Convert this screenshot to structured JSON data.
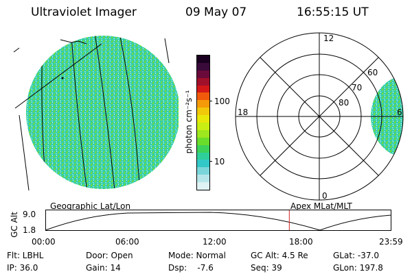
{
  "header": {
    "instrument": "Ultraviolet Imager",
    "date": "09 May 07",
    "time": "16:55:15 UT"
  },
  "colorbar": {
    "unit_label": "photon cm⁻²s⁻¹",
    "ticks": [
      "100",
      "10"
    ],
    "colors": [
      "#1a0020",
      "#3a0a3a",
      "#6a0a3a",
      "#a0102a",
      "#d41818",
      "#f05a0a",
      "#f59a08",
      "#f2c80a",
      "#e8e80a",
      "#c8ee14",
      "#9ee61e",
      "#6adc2a",
      "#3cd25a",
      "#2fcf9c",
      "#33c8c8",
      "#7ad6da",
      "#b6e6ea",
      "#dff2f4"
    ]
  },
  "polar_plot": {
    "mlt_labels": {
      "top": "12",
      "bottom": "0",
      "left": "18",
      "right": "6"
    },
    "lat_labels": [
      "60",
      "70",
      "80"
    ]
  },
  "timeline": {
    "y_axis_label": "GC Alt",
    "y_ticks": [
      "9.0",
      "1.8"
    ],
    "left_caption": "Geographic Lat/Lon",
    "right_caption": "Apex MLat/MLT",
    "x_ticks": [
      "00:00",
      "06:00",
      "12:00",
      "18:00",
      "23:59"
    ],
    "current_time_fraction": 0.705
  },
  "info": {
    "row1": {
      "filter": "Flt: LBHL",
      "door": "Door: Open",
      "mode": "Mode: Normal",
      "gc_alt": "GC Alt: 4.5 Re",
      "glat": "GLat: -37.0"
    },
    "row2": {
      "ip": "IP: 36.0",
      "gain": "Gain: 14",
      "dsp": "Dsp:    -7.6",
      "seq": "Seq: 39",
      "glon": "GLon: 197.8"
    }
  }
}
